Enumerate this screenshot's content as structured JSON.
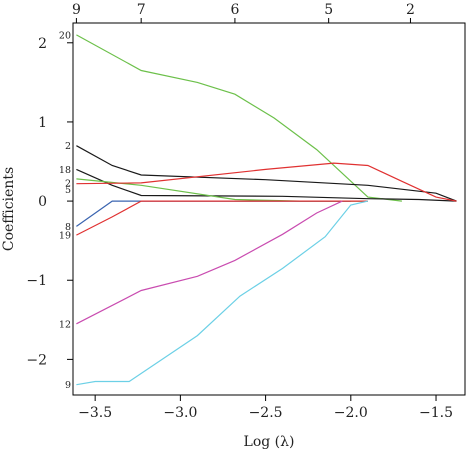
{
  "chart_data": {
    "type": "line",
    "xlabel": "Log (λ)",
    "ylabel": "Coefficients",
    "xlim": [
      -3.63,
      -1.33
    ],
    "ylim": [
      -2.45,
      2.25
    ],
    "x_ticks": [
      -3.5,
      -3.0,
      -2.5,
      -2.0,
      -1.5
    ],
    "x_tick_labels": [
      "−3.5",
      "−3.0",
      "−2.5",
      "−2.0",
      "−1.5"
    ],
    "y_ticks": [
      -2,
      -1,
      0,
      1,
      2
    ],
    "y_tick_labels": [
      "−2",
      "−1",
      "0",
      "1",
      "2"
    ],
    "top_axis": {
      "ticks": [
        -3.61,
        -3.23,
        -2.68,
        -2.13,
        -1.65
      ],
      "labels": [
        "9",
        "7",
        "6",
        "5",
        "2"
      ]
    },
    "series": [
      {
        "label": "20",
        "color": "#6cc04a",
        "x": [
          -3.61,
          -3.23,
          -2.9,
          -2.68,
          -2.45,
          -2.2,
          -1.9,
          -1.7
        ],
        "y": [
          2.1,
          1.65,
          1.5,
          1.35,
          1.05,
          0.65,
          0.05,
          0.0
        ]
      },
      {
        "label": "2",
        "color": "#1a1a1a",
        "x": [
          -3.61,
          -3.4,
          -3.23,
          -2.5,
          -1.9,
          -1.5,
          -1.38
        ],
        "y": [
          0.7,
          0.45,
          0.33,
          0.27,
          0.2,
          0.1,
          0.0
        ]
      },
      {
        "label": "18",
        "color": "#1a1a1a",
        "x": [
          -3.61,
          -3.4,
          -3.23,
          -2.4,
          -1.9,
          -1.6,
          -1.38
        ],
        "y": [
          0.4,
          0.2,
          0.07,
          0.06,
          0.03,
          0.02,
          0.0
        ]
      },
      {
        "label": "2",
        "color": "#6cc04a",
        "x": [
          -3.61,
          -3.23,
          -2.68,
          -2.3,
          -1.9
        ],
        "y": [
          0.28,
          0.2,
          0.02,
          0.0,
          0.0
        ]
      },
      {
        "label": "5",
        "color": "#e03131",
        "x": [
          -3.61,
          -3.23,
          -2.5,
          -2.1,
          -1.9,
          -1.7,
          -1.5,
          -1.38
        ],
        "y": [
          0.22,
          0.23,
          0.4,
          0.48,
          0.45,
          0.25,
          0.05,
          0.0
        ]
      },
      {
        "label": "8",
        "color": "#3a64b0",
        "x": [
          -3.61,
          -3.4,
          -2.68,
          -2.0
        ],
        "y": [
          -0.32,
          0.0,
          0.0,
          0.0
        ]
      },
      {
        "label": "19",
        "color": "#e03131",
        "x": [
          -3.61,
          -3.4,
          -3.23,
          -2.4,
          -2.0,
          -1.9
        ],
        "y": [
          -0.43,
          -0.2,
          0.0,
          0.0,
          0.0,
          0.0
        ]
      },
      {
        "label": "12",
        "color": "#c94cb0",
        "x": [
          -3.61,
          -3.23,
          -2.9,
          -2.68,
          -2.4,
          -2.2,
          -2.05
        ],
        "y": [
          -1.55,
          -1.13,
          -0.95,
          -0.75,
          -0.42,
          -0.15,
          0.0
        ]
      },
      {
        "label": "9",
        "color": "#6cd0e6",
        "x": [
          -3.61,
          -3.5,
          -3.3,
          -2.9,
          -2.65,
          -2.4,
          -2.15,
          -2.0,
          -1.9
        ],
        "y": [
          -2.32,
          -2.28,
          -2.28,
          -1.7,
          -1.2,
          -0.85,
          -0.45,
          -0.05,
          0.0
        ]
      }
    ],
    "label_offsets_y": [
      0,
      0,
      0,
      4,
      6,
      0,
      0,
      0,
      0
    ]
  }
}
